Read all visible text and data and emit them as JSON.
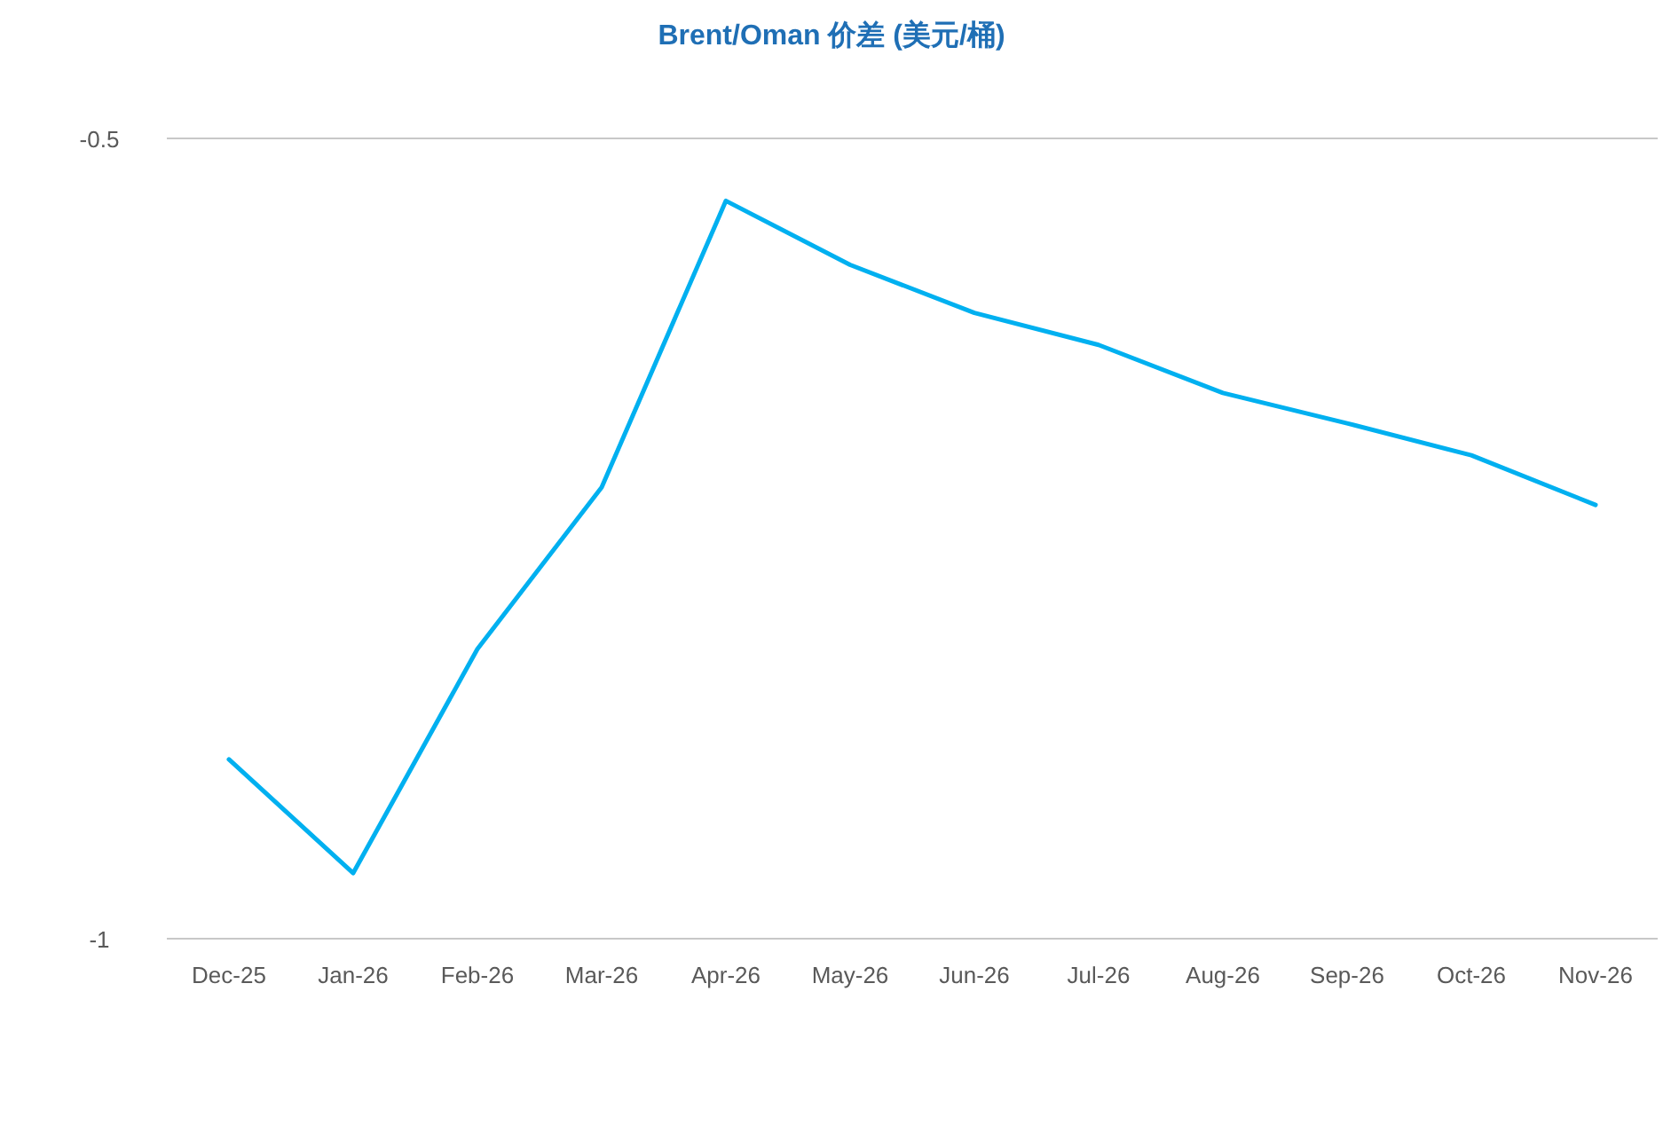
{
  "chart_data": {
    "type": "line",
    "title": "Brent/Oman 价差 (美元/桶)",
    "categories": [
      "Dec-25",
      "Jan-26",
      "Feb-26",
      "Mar-26",
      "Apr-26",
      "May-26",
      "Jun-26",
      "Jul-26",
      "Aug-26",
      "Sep-26",
      "Oct-26",
      "Nov-26"
    ],
    "series": [
      {
        "color": "#00b0f0",
        "values": [
          -0.888,
          -0.959,
          -0.819,
          -0.718,
          -0.539,
          -0.579,
          -0.609,
          -0.629,
          -0.659,
          -0.678,
          -0.698,
          -0.729
        ]
      }
    ],
    "ylim": [
      -1,
      -0.5
    ],
    "yticks": [
      -1,
      -0.5
    ],
    "marker": "none",
    "line_style": "solid"
  }
}
